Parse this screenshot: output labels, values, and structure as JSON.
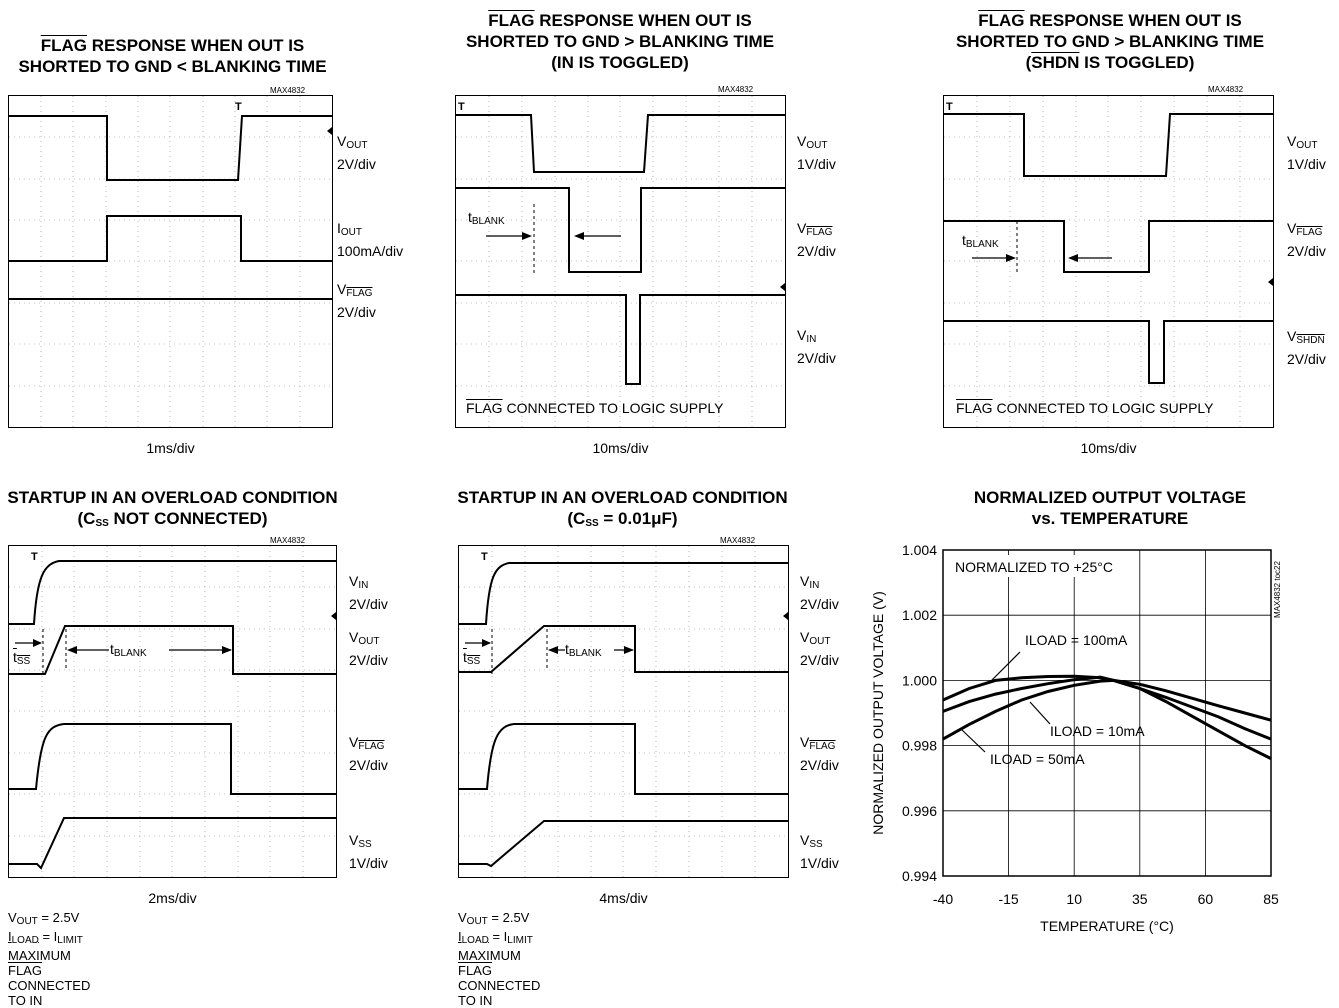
{
  "panels": [
    {
      "id": "toc17",
      "title_line1_flag": "FLAG",
      "title_line1_rest": " RESPONSE WHEN OUT IS",
      "title_line2": "SHORTED TO GND < BLANKING TIME",
      "title_line3": "",
      "toc": "MAX4832 toc17",
      "timebase": "1ms/div",
      "channels": [
        {
          "name": "VOUT",
          "scale": "2V/div"
        },
        {
          "name": "IOUT",
          "scale": "100mA/div"
        },
        {
          "name": "VFLAG",
          "scale": "2V/div"
        }
      ]
    },
    {
      "id": "toc18",
      "title_line1_flag": "FLAG",
      "title_line1_rest": " RESPONSE WHEN OUT IS",
      "title_line2": "SHORTED TO GND > BLANKING TIME",
      "title_line3": "(IN IS TOGGLED)",
      "toc": "MAX4832 toc18",
      "timebase": "10ms/div",
      "note": "CONNECTED TO LOGIC SUPPLY",
      "note_flag": "FLAG",
      "annotation": "tBLANK",
      "channels": [
        {
          "name": "VOUT",
          "scale": "1V/div"
        },
        {
          "name": "VFLAG",
          "scale": "2V/div"
        },
        {
          "name": "VIN",
          "scale": "2V/div"
        }
      ]
    },
    {
      "id": "toc19",
      "title_line1_flag": "FLAG",
      "title_line1_rest": " RESPONSE WHEN OUT IS",
      "title_line2": "SHORTED TO GND > BLANKING TIME",
      "title_line3_pre": "(",
      "title_line3_shdn": "SHDN",
      "title_line3_post": " IS TOGGLED)",
      "toc": "MAX4832 toc19",
      "timebase": "10ms/div",
      "note": "CONNECTED TO LOGIC SUPPLY",
      "note_flag": "FLAG",
      "annotation": "tBLANK",
      "channels": [
        {
          "name": "VOUT",
          "scale": "1V/div"
        },
        {
          "name": "VFLAG",
          "scale": "2V/div"
        },
        {
          "name": "VSHDN",
          "scale": "2V/div"
        }
      ]
    },
    {
      "id": "toc20",
      "title_line1": "STARTUP IN AN OVERLOAD CONDITION",
      "title_line2": "(CSS NOT CONNECTED)",
      "toc": "MAX4832 toc20",
      "timebase": "2ms/div",
      "notes": [
        "VOUT = 2.5V",
        "ILOAD = ILIMIT MAXIMUM",
        "FLAG CONNECTED TO IN"
      ],
      "annotations": [
        "tSS",
        "tBLANK"
      ],
      "channels": [
        {
          "name": "VIN",
          "scale": "2V/div"
        },
        {
          "name": "VOUT",
          "scale": "2V/div"
        },
        {
          "name": "VFLAG",
          "scale": "2V/div"
        },
        {
          "name": "VSS",
          "scale": "1V/div"
        }
      ]
    },
    {
      "id": "toc21",
      "title_line1": "STARTUP IN AN OVERLOAD CONDITION",
      "title_line2": "(CSS = 0.01μF)",
      "toc": "MAX4832 toc21",
      "timebase": "4ms/div",
      "notes": [
        "VOUT = 2.5V",
        "ILOAD = ILIMIT MAXIMUM",
        "FLAG CONNECTED TO IN"
      ],
      "annotations": [
        "tSS",
        "tBLANK"
      ],
      "channels": [
        {
          "name": "VIN",
          "scale": "2V/div"
        },
        {
          "name": "VOUT",
          "scale": "2V/div"
        },
        {
          "name": "VFLAG",
          "scale": "2V/div"
        },
        {
          "name": "VSS",
          "scale": "1V/div"
        }
      ]
    }
  ],
  "chart_data": {
    "type": "line",
    "title_line1": "NORMALIZED OUTPUT VOLTAGE",
    "title_line2": "vs. TEMPERATURE",
    "toc": "MAX4832 toc22",
    "xlabel": "TEMPERATURE (°C)",
    "ylabel": "NORMALIZED OUTPUT VOLTAGE (V)",
    "xlim": [
      -40,
      85
    ],
    "ylim": [
      0.994,
      1.004
    ],
    "xticks": [
      "-40",
      "-15",
      "10",
      "35",
      "60",
      "85"
    ],
    "yticks": [
      "0.994",
      "0.996",
      "0.998",
      "1.000",
      "1.002",
      "1.004"
    ],
    "annotation": "NORMALIZED TO +25°C",
    "grid": true,
    "x": [
      -40,
      -30,
      -20,
      -10,
      0,
      10,
      20,
      25,
      35,
      45,
      55,
      65,
      75,
      85
    ],
    "series": [
      {
        "name": "ILOAD = 100mA",
        "values": [
          0.9994,
          0.99975,
          1.0,
          1.00008,
          1.00012,
          1.00013,
          1.00008,
          1.0,
          0.99988,
          0.99968,
          0.99945,
          0.99922,
          0.999,
          0.99878
        ]
      },
      {
        "name": "ILOAD = 10mA",
        "values": [
          0.99905,
          0.99935,
          0.99958,
          0.99975,
          0.9999,
          1.00002,
          1.0001,
          1.0,
          0.99975,
          0.99948,
          0.99918,
          0.99888,
          0.99852,
          0.9982
        ]
      },
      {
        "name": "ILOAD = 50mA",
        "values": [
          0.9982,
          0.99865,
          0.99905,
          0.9994,
          0.99966,
          0.99985,
          0.99998,
          1.0,
          0.99975,
          0.99935,
          0.9989,
          0.99845,
          0.998,
          0.9976
        ]
      }
    ]
  }
}
